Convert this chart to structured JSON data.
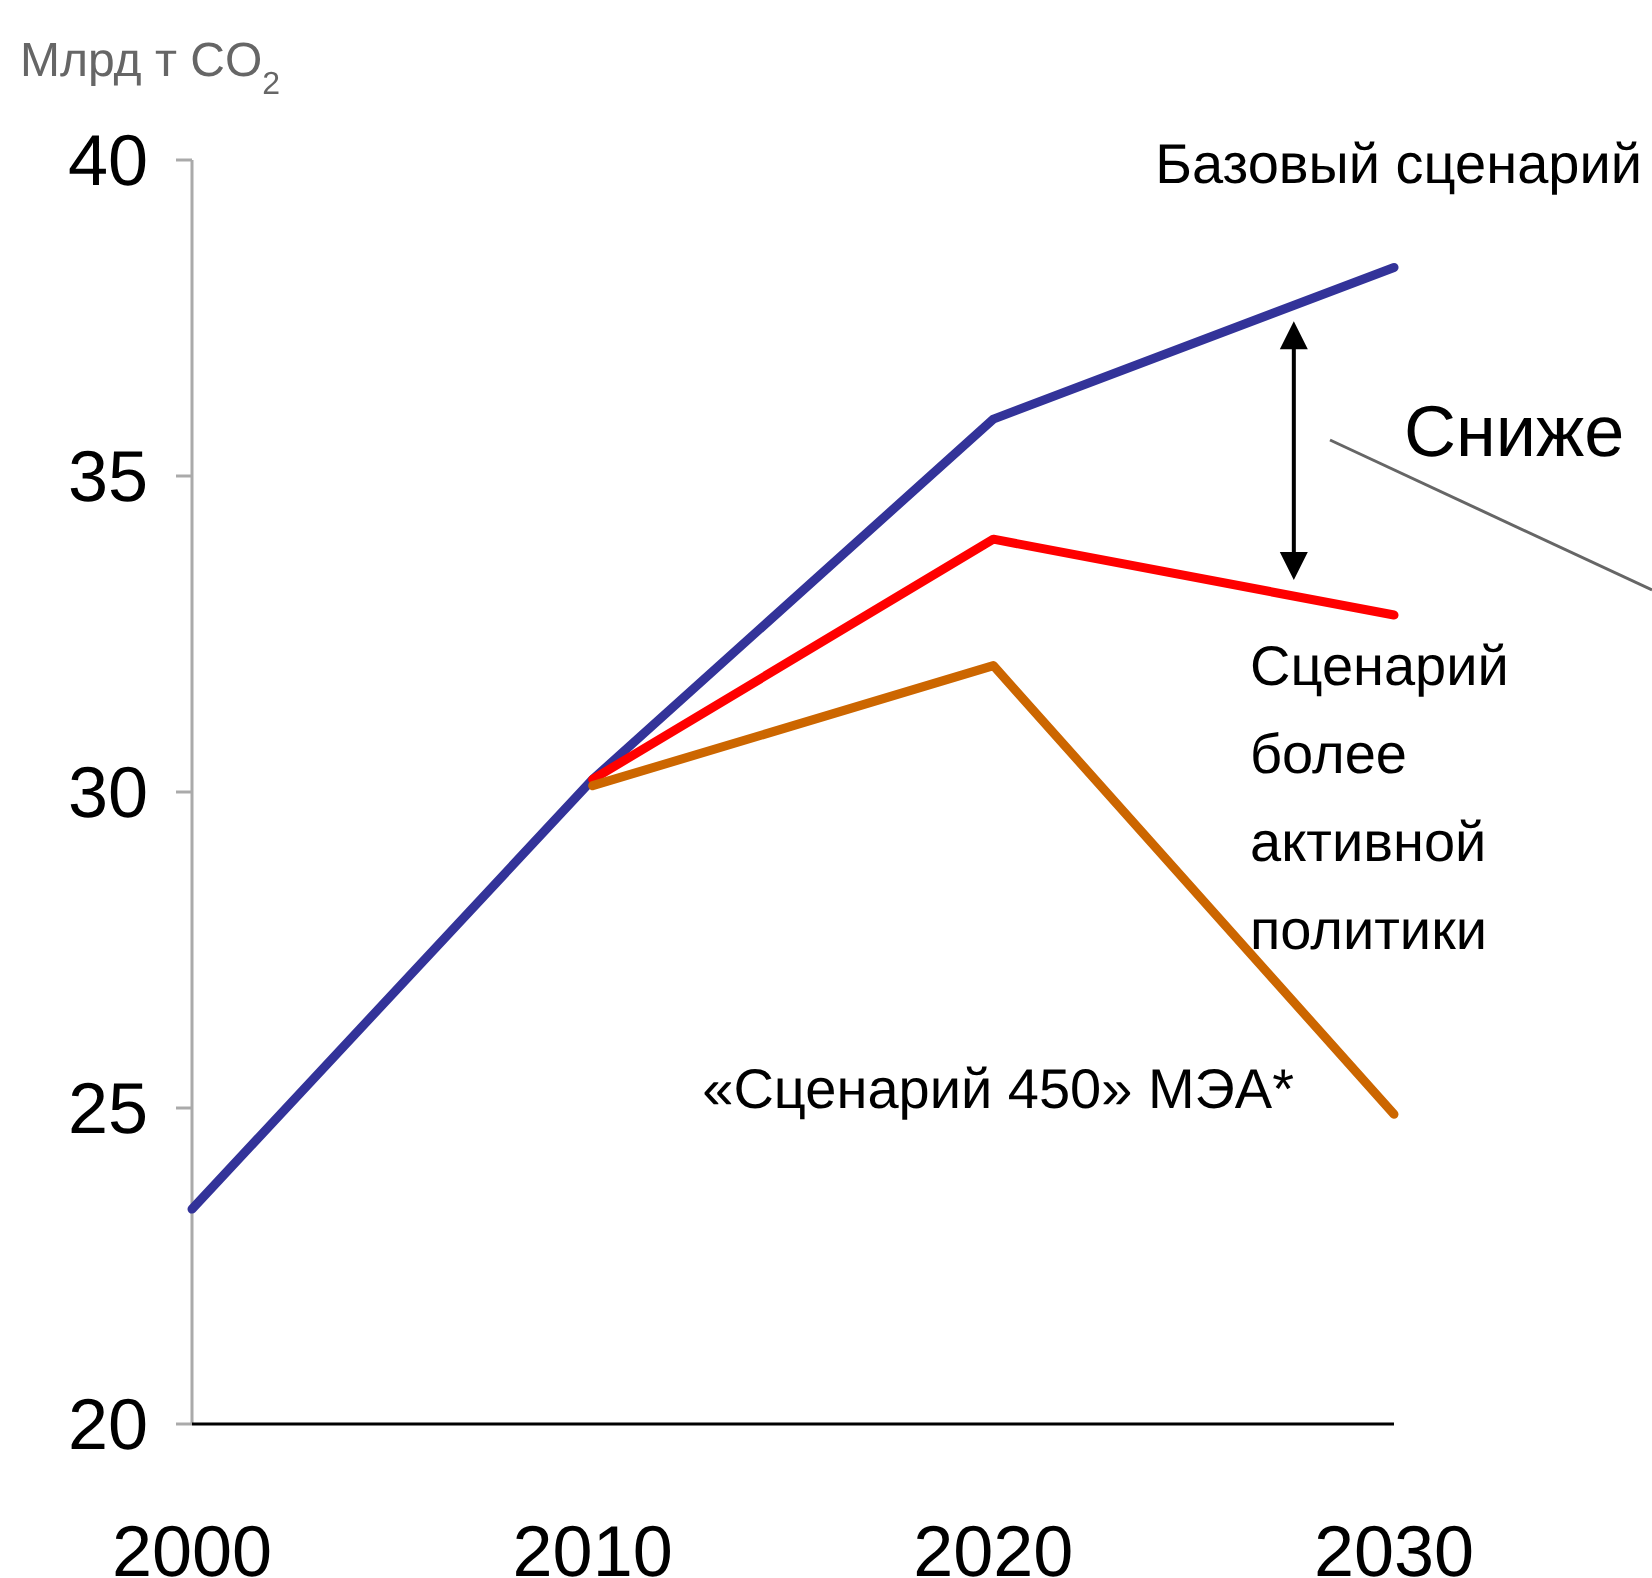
{
  "chart_data": {
    "type": "line",
    "ylabel": "Млрд т CO$_{2}$",
    "x": [
      2000,
      2010,
      2020,
      2030
    ],
    "xlim": [
      2000,
      2030
    ],
    "xticks": [
      2000,
      2010,
      2020,
      2030
    ],
    "ylim": [
      20,
      40
    ],
    "yticks": [
      20,
      25,
      30,
      35,
      40
    ],
    "grid": false,
    "line_style": "solid",
    "series": [
      {
        "name": "Базовый сценарий",
        "color": "#333399",
        "values": [
          23.4,
          30.2,
          35.9,
          38.3
        ]
      },
      {
        "name": "Сценарий более активной политики",
        "color": "#ff0000",
        "x": [
          2010,
          2020,
          2030
        ],
        "values": [
          30.2,
          34.0,
          32.8
        ]
      },
      {
        "name": "«Сценарий 450» МЭА*",
        "color": "#cc6600",
        "x": [
          2010,
          2020,
          2030
        ],
        "values": [
          30.1,
          32.0,
          24.9
        ]
      }
    ],
    "annotations": [
      "Сниже"
    ]
  }
}
